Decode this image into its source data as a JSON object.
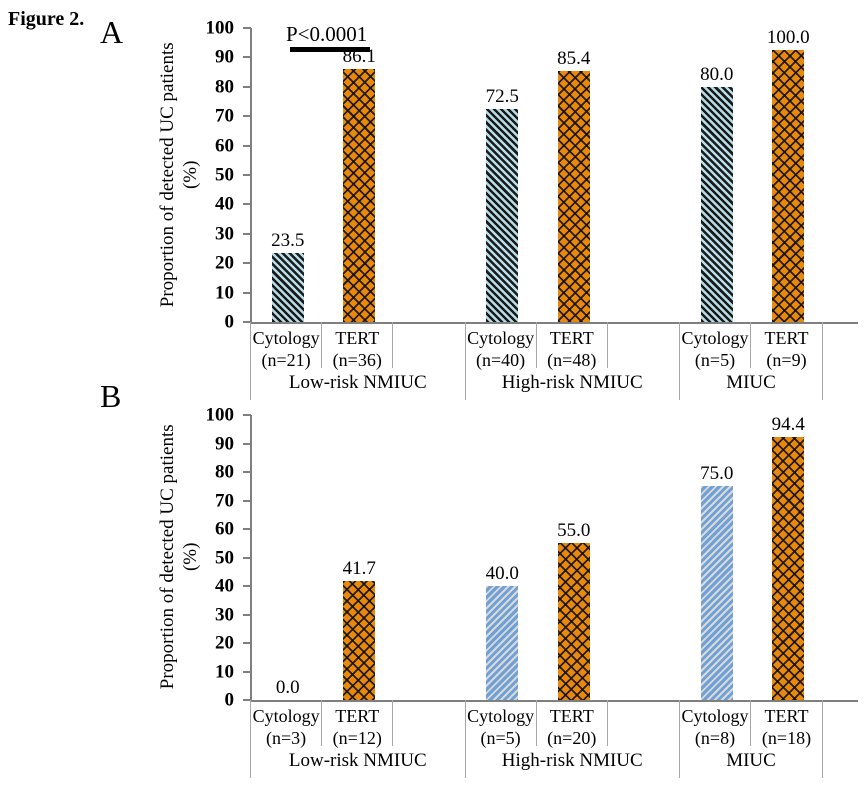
{
  "figure_label": "Figure 2.",
  "colors": {
    "tert_fill": "#e8890e",
    "hatch_black": "#1a1a1a",
    "cytology_panel_a_fill": "#b7dee8",
    "cytology_panel_b_fill": "#6fa1d6",
    "cytology_panel_b_stripe": "#d9d9d9",
    "axis_line": "#7f7f7f",
    "table_line": "#a6a6a6",
    "annotation_bar": "#000000"
  },
  "chart_data": {
    "type": "bar",
    "title": "Figure 2.",
    "panels": [
      {
        "label": "A",
        "ylabel": "Proportion of detected UC patients",
        "ylabel_unit": "(%)",
        "ylim": [
          0,
          100
        ],
        "yticks": [
          "100",
          "90",
          "80",
          "70",
          "60",
          "50",
          "40",
          "30",
          "20",
          "10",
          "0"
        ],
        "annotation": "P<0.0001",
        "groups": [
          {
            "label": "Low-risk NMIUC",
            "bars": [
              {
                "series": "Cytology",
                "sub": "(n=21)",
                "value": 23.5,
                "display": "23.5"
              },
              {
                "series": "TERT",
                "sub": "(n=36)",
                "value": 86.1,
                "display": "86.1"
              }
            ]
          },
          {
            "label": "High-risk NMIUC",
            "bars": [
              {
                "series": "Cytology",
                "sub": "(n=40)",
                "value": 72.5,
                "display": "72.5"
              },
              {
                "series": "TERT",
                "sub": "(n=48)",
                "value": 85.4,
                "display": "85.4"
              }
            ]
          },
          {
            "label": "MIUC",
            "bars": [
              {
                "series": "Cytology",
                "sub": "(n=5)",
                "value": 80.0,
                "display": "80.0"
              },
              {
                "series": "TERT",
                "sub": "(n=9)",
                "value": 100.0,
                "display": "100.0"
              }
            ]
          }
        ]
      },
      {
        "label": "B",
        "ylabel": "Proportion of detected UC patients",
        "ylabel_unit": "(%)",
        "ylim": [
          0,
          100
        ],
        "yticks": [
          "100",
          "90",
          "80",
          "70",
          "60",
          "50",
          "40",
          "30",
          "20",
          "10",
          "0"
        ],
        "groups": [
          {
            "label": "Low-risk NMIUC",
            "bars": [
              {
                "series": "Cytology",
                "sub": "(n=3)",
                "value": 0.0,
                "display": "0.0"
              },
              {
                "series": "TERT",
                "sub": "(n=12)",
                "value": 41.7,
                "display": "41.7"
              }
            ]
          },
          {
            "label": "High-risk NMIUC",
            "bars": [
              {
                "series": "Cytology",
                "sub": "(n=5)",
                "value": 40.0,
                "display": "40.0"
              },
              {
                "series": "TERT",
                "sub": "(n=20)",
                "value": 55.0,
                "display": "55.0"
              }
            ]
          },
          {
            "label": "MIUC",
            "bars": [
              {
                "series": "Cytology",
                "sub": "(n=8)",
                "value": 75.0,
                "display": "75.0"
              },
              {
                "series": "TERT",
                "sub": "(n=18)",
                "value": 94.4,
                "display": "94.4"
              }
            ]
          }
        ]
      }
    ]
  }
}
